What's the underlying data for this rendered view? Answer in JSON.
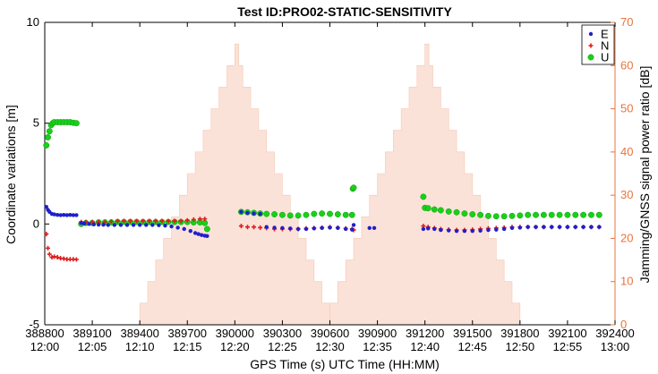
{
  "chart_data": {
    "type": "scatter",
    "title": "Test ID:PRO02-STATIC-SENSITIVITY",
    "xlabel": "GPS Time (s) UTC Time (HH:MM)",
    "ylabel_left": "Coordinate variations [m]",
    "ylabel_right": "Jamming/GNSS signal power ratio [dB]",
    "xlim": [
      388800,
      392400
    ],
    "ylim_left": [
      -5,
      10
    ],
    "ylim_right": [
      0,
      70
    ],
    "yticks_left": [
      -5,
      0,
      5,
      10
    ],
    "yticks_right": [
      0,
      10,
      20,
      30,
      40,
      50,
      60,
      70
    ],
    "xticks": [
      388800,
      389100,
      389400,
      389700,
      390000,
      390300,
      390600,
      390900,
      391200,
      391500,
      391800,
      392100,
      392400
    ],
    "xticks_utc": [
      "12:00",
      "12:05",
      "12:10",
      "12:15",
      "12:20",
      "12:25",
      "12:30",
      "12:35",
      "12:40",
      "12:45",
      "12:50",
      "12:55",
      "13:00"
    ],
    "right_axis_color": "#e8743e",
    "jamming_color": "#fbe2d8",
    "legend_position": "top-right",
    "jamming_profile": [
      {
        "x": 389400,
        "db": 5
      },
      {
        "x": 389450,
        "db": 10
      },
      {
        "x": 389500,
        "db": 15
      },
      {
        "x": 389550,
        "db": 20
      },
      {
        "x": 389600,
        "db": 25
      },
      {
        "x": 389650,
        "db": 30
      },
      {
        "x": 389700,
        "db": 35
      },
      {
        "x": 389750,
        "db": 40
      },
      {
        "x": 389800,
        "db": 45
      },
      {
        "x": 389850,
        "db": 50
      },
      {
        "x": 389900,
        "db": 55
      },
      {
        "x": 389950,
        "db": 60
      },
      {
        "x": 390000,
        "db": 65
      },
      {
        "x": 390025,
        "db": 60
      },
      {
        "x": 390050,
        "db": 55
      },
      {
        "x": 390100,
        "db": 50
      },
      {
        "x": 390150,
        "db": 45
      },
      {
        "x": 390200,
        "db": 40
      },
      {
        "x": 390250,
        "db": 35
      },
      {
        "x": 390300,
        "db": 30
      },
      {
        "x": 390350,
        "db": 25
      },
      {
        "x": 390400,
        "db": 20
      },
      {
        "x": 390450,
        "db": 15
      },
      {
        "x": 390500,
        "db": 10
      },
      {
        "x": 390550,
        "db": 5
      },
      {
        "x": 390600,
        "db": 0
      },
      {
        "x": 390600,
        "db": 5
      },
      {
        "x": 390650,
        "db": 10
      },
      {
        "x": 390700,
        "db": 15
      },
      {
        "x": 390750,
        "db": 20
      },
      {
        "x": 390800,
        "db": 25
      },
      {
        "x": 390850,
        "db": 30
      },
      {
        "x": 390900,
        "db": 35
      },
      {
        "x": 390950,
        "db": 40
      },
      {
        "x": 391000,
        "db": 45
      },
      {
        "x": 391050,
        "db": 50
      },
      {
        "x": 391100,
        "db": 55
      },
      {
        "x": 391150,
        "db": 60
      },
      {
        "x": 391200,
        "db": 65
      },
      {
        "x": 391225,
        "db": 60
      },
      {
        "x": 391250,
        "db": 55
      },
      {
        "x": 391300,
        "db": 50
      },
      {
        "x": 391350,
        "db": 45
      },
      {
        "x": 391400,
        "db": 40
      },
      {
        "x": 391450,
        "db": 35
      },
      {
        "x": 391500,
        "db": 30
      },
      {
        "x": 391550,
        "db": 25
      },
      {
        "x": 391600,
        "db": 20
      },
      {
        "x": 391650,
        "db": 15
      },
      {
        "x": 391700,
        "db": 10
      },
      {
        "x": 391750,
        "db": 5
      },
      {
        "x": 391800,
        "db": 0
      }
    ],
    "series": [
      {
        "name": "E",
        "marker": "dot",
        "color": "#1f1fcc",
        "points": [
          [
            388810,
            0.85
          ],
          [
            388820,
            0.7
          ],
          [
            388830,
            0.6
          ],
          [
            388845,
            0.5
          ],
          [
            388860,
            0.48
          ],
          [
            388880,
            0.45
          ],
          [
            388900,
            0.44
          ],
          [
            388920,
            0.45
          ],
          [
            388940,
            0.44
          ],
          [
            388960,
            0.45
          ],
          [
            388980,
            0.44
          ],
          [
            389000,
            0.44
          ],
          [
            389030,
            0.05
          ],
          [
            389050,
            0.02
          ],
          [
            389080,
            0.0
          ],
          [
            389110,
            -0.02
          ],
          [
            389140,
            -0.03
          ],
          [
            389170,
            -0.04
          ],
          [
            389200,
            -0.05
          ],
          [
            389240,
            -0.05
          ],
          [
            389280,
            -0.05
          ],
          [
            389320,
            -0.05
          ],
          [
            389360,
            -0.05
          ],
          [
            389400,
            -0.05
          ],
          [
            389440,
            -0.05
          ],
          [
            389480,
            -0.05
          ],
          [
            389520,
            -0.06
          ],
          [
            389560,
            -0.08
          ],
          [
            389600,
            -0.12
          ],
          [
            389640,
            -0.18
          ],
          [
            389680,
            -0.25
          ],
          [
            389720,
            -0.35
          ],
          [
            389750,
            -0.45
          ],
          [
            389770,
            -0.5
          ],
          [
            389790,
            -0.55
          ],
          [
            389810,
            -0.58
          ],
          [
            389825,
            -0.6
          ],
          [
            390040,
            0.6
          ],
          [
            390080,
            0.55
          ],
          [
            390120,
            0.52
          ],
          [
            390160,
            0.5
          ],
          [
            390200,
            -0.15
          ],
          [
            390250,
            -0.18
          ],
          [
            390300,
            -0.2
          ],
          [
            390350,
            -0.22
          ],
          [
            390400,
            -0.25
          ],
          [
            390450,
            -0.25
          ],
          [
            390500,
            -0.22
          ],
          [
            390550,
            -0.2
          ],
          [
            390600,
            -0.18
          ],
          [
            390650,
            -0.2
          ],
          [
            390700,
            -0.25
          ],
          [
            390740,
            -0.28
          ],
          [
            390750,
            -0.05
          ],
          [
            390850,
            -0.2
          ],
          [
            390880,
            -0.2
          ],
          [
            391190,
            -0.25
          ],
          [
            391220,
            -0.22
          ],
          [
            391260,
            -0.25
          ],
          [
            391300,
            -0.3
          ],
          [
            391350,
            -0.32
          ],
          [
            391400,
            -0.35
          ],
          [
            391450,
            -0.35
          ],
          [
            391500,
            -0.35
          ],
          [
            391550,
            -0.33
          ],
          [
            391600,
            -0.3
          ],
          [
            391650,
            -0.28
          ],
          [
            391700,
            -0.25
          ],
          [
            391750,
            -0.2
          ],
          [
            391800,
            -0.18
          ],
          [
            391850,
            -0.15
          ],
          [
            391900,
            -0.15
          ],
          [
            391950,
            -0.15
          ],
          [
            392000,
            -0.15
          ],
          [
            392050,
            -0.15
          ],
          [
            392100,
            -0.15
          ],
          [
            392150,
            -0.15
          ],
          [
            392200,
            -0.15
          ],
          [
            392250,
            -0.15
          ],
          [
            392300,
            -0.15
          ]
        ]
      },
      {
        "name": "N",
        "marker": "plus",
        "color": "#e01b1b",
        "points": [
          [
            388810,
            -0.5
          ],
          [
            388820,
            -1.2
          ],
          [
            388830,
            -1.5
          ],
          [
            388845,
            -1.65
          ],
          [
            388860,
            -1.62
          ],
          [
            388880,
            -1.65
          ],
          [
            388900,
            -1.7
          ],
          [
            388920,
            -1.72
          ],
          [
            388940,
            -1.75
          ],
          [
            388960,
            -1.75
          ],
          [
            388980,
            -1.75
          ],
          [
            389000,
            -1.76
          ],
          [
            389030,
            0.1
          ],
          [
            389060,
            0.1
          ],
          [
            389100,
            0.1
          ],
          [
            389140,
            0.1
          ],
          [
            389180,
            0.1
          ],
          [
            389220,
            0.12
          ],
          [
            389260,
            0.15
          ],
          [
            389300,
            0.15
          ],
          [
            389340,
            0.15
          ],
          [
            389380,
            0.15
          ],
          [
            389420,
            0.15
          ],
          [
            389460,
            0.15
          ],
          [
            389500,
            0.15
          ],
          [
            389540,
            0.15
          ],
          [
            389580,
            0.15
          ],
          [
            389620,
            0.15
          ],
          [
            389660,
            0.15
          ],
          [
            389700,
            0.18
          ],
          [
            389740,
            0.22
          ],
          [
            389780,
            0.25
          ],
          [
            389810,
            0.25
          ],
          [
            390040,
            -0.1
          ],
          [
            390080,
            -0.15
          ],
          [
            390120,
            -0.15
          ],
          [
            390160,
            -0.18
          ],
          [
            390200,
            -0.2
          ],
          [
            390250,
            -0.25
          ],
          [
            390300,
            -0.25
          ],
          [
            390350,
            -0.25
          ],
          [
            390400,
            -0.25
          ],
          [
            390450,
            -0.22
          ],
          [
            390500,
            -0.2
          ],
          [
            390550,
            -0.18
          ],
          [
            390600,
            -0.15
          ],
          [
            390650,
            -0.18
          ],
          [
            390700,
            -0.22
          ],
          [
            390740,
            -0.25
          ],
          [
            390750,
            -0.3
          ],
          [
            391190,
            -0.1
          ],
          [
            391220,
            -0.15
          ],
          [
            391260,
            -0.2
          ],
          [
            391300,
            -0.25
          ],
          [
            391350,
            -0.28
          ],
          [
            391400,
            -0.3
          ],
          [
            391450,
            -0.3
          ],
          [
            391500,
            -0.28
          ],
          [
            391550,
            -0.25
          ],
          [
            391600,
            -0.22
          ],
          [
            391650,
            -0.2
          ],
          [
            391700,
            -0.18
          ],
          [
            391750,
            -0.15
          ],
          [
            391800,
            -0.15
          ],
          [
            391850,
            -0.15
          ],
          [
            391900,
            -0.15
          ],
          [
            391950,
            -0.15
          ],
          [
            392000,
            -0.15
          ],
          [
            392050,
            -0.15
          ],
          [
            392100,
            -0.15
          ],
          [
            392150,
            -0.15
          ],
          [
            392200,
            -0.15
          ],
          [
            392250,
            -0.15
          ],
          [
            392300,
            -0.15
          ]
        ]
      },
      {
        "name": "U",
        "marker": "circle",
        "color": "#19d019",
        "points": [
          [
            388810,
            3.9
          ],
          [
            388820,
            4.3
          ],
          [
            388830,
            4.6
          ],
          [
            388840,
            4.9
          ],
          [
            388850,
            5.0
          ],
          [
            388860,
            5.05
          ],
          [
            388880,
            5.05
          ],
          [
            388900,
            5.05
          ],
          [
            388920,
            5.05
          ],
          [
            388940,
            5.05
          ],
          [
            388960,
            5.05
          ],
          [
            388980,
            5.02
          ],
          [
            389000,
            5.0
          ],
          [
            389030,
            0.0
          ],
          [
            389060,
            0.05
          ],
          [
            389100,
            0.05
          ],
          [
            389140,
            0.08
          ],
          [
            389180,
            0.08
          ],
          [
            389220,
            0.08
          ],
          [
            389260,
            0.1
          ],
          [
            389300,
            0.1
          ],
          [
            389340,
            0.1
          ],
          [
            389380,
            0.1
          ],
          [
            389420,
            0.1
          ],
          [
            389460,
            0.1
          ],
          [
            389500,
            0.1
          ],
          [
            389540,
            0.1
          ],
          [
            389580,
            0.1
          ],
          [
            389620,
            0.1
          ],
          [
            389660,
            0.1
          ],
          [
            389700,
            0.1
          ],
          [
            389740,
            0.08
          ],
          [
            389780,
            0.08
          ],
          [
            389810,
            0.05
          ],
          [
            389825,
            -0.25
          ],
          [
            390040,
            0.6
          ],
          [
            390080,
            0.58
          ],
          [
            390120,
            0.55
          ],
          [
            390160,
            0.52
          ],
          [
            390200,
            0.5
          ],
          [
            390250,
            0.48
          ],
          [
            390300,
            0.45
          ],
          [
            390350,
            0.42
          ],
          [
            390400,
            0.42
          ],
          [
            390450,
            0.45
          ],
          [
            390500,
            0.5
          ],
          [
            390550,
            0.52
          ],
          [
            390600,
            0.5
          ],
          [
            390650,
            0.48
          ],
          [
            390700,
            0.45
          ],
          [
            390740,
            0.45
          ],
          [
            390745,
            1.75
          ],
          [
            390750,
            1.8
          ],
          [
            391190,
            1.35
          ],
          [
            391200,
            0.8
          ],
          [
            391220,
            0.78
          ],
          [
            391260,
            0.72
          ],
          [
            391300,
            0.68
          ],
          [
            391350,
            0.62
          ],
          [
            391400,
            0.58
          ],
          [
            391450,
            0.52
          ],
          [
            391500,
            0.48
          ],
          [
            391550,
            0.45
          ],
          [
            391600,
            0.4
          ],
          [
            391650,
            0.38
          ],
          [
            391700,
            0.38
          ],
          [
            391750,
            0.4
          ],
          [
            391800,
            0.42
          ],
          [
            391850,
            0.45
          ],
          [
            391900,
            0.45
          ],
          [
            391950,
            0.45
          ],
          [
            392000,
            0.45
          ],
          [
            392050,
            0.45
          ],
          [
            392100,
            0.45
          ],
          [
            392150,
            0.45
          ],
          [
            392200,
            0.45
          ],
          [
            392250,
            0.45
          ],
          [
            392300,
            0.45
          ]
        ]
      }
    ]
  }
}
